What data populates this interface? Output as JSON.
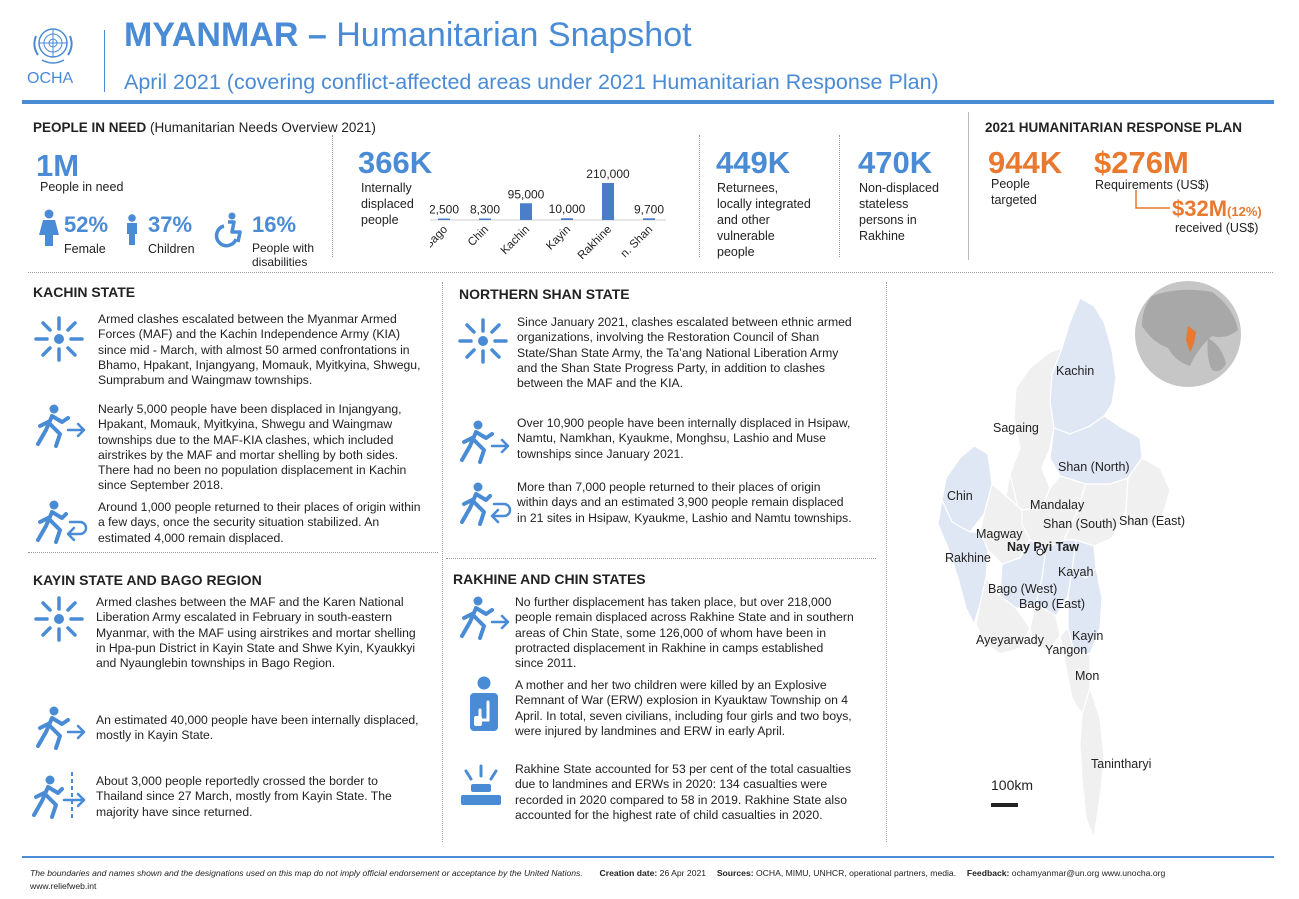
{
  "header": {
    "org": "OCHA",
    "title_country": "MYANMAR",
    "title_dash": " – ",
    "title_rest": "Humanitarian Snapshot",
    "subtitle": "April 2021 (covering conflict-affected areas under 2021 Humanitarian Response Plan)"
  },
  "pin": {
    "heading": "PEOPLE IN NEED",
    "heading_note": " (Humanitarian Needs Overview 2021)",
    "total_value": "1M",
    "total_label": "People in need",
    "female_pct": "52%",
    "female_label": "Female",
    "children_pct": "37%",
    "children_label": "Children",
    "disab_pct": "16%",
    "disab_label_1": "People with",
    "disab_label_2": "disabilities"
  },
  "idp": {
    "value": "366K",
    "label_1": "Internally",
    "label_2": "displaced",
    "label_3": "people"
  },
  "chart_data": {
    "type": "bar",
    "categories": [
      "Bago",
      "Chin",
      "Kachin",
      "Kayin",
      "Rakhine",
      "n. Shan"
    ],
    "values": [
      2500,
      8300,
      95000,
      10000,
      210000,
      9700
    ],
    "value_labels": [
      "2,500",
      "8,300",
      "95,000",
      "10,000",
      "210,000",
      "9,700"
    ],
    "ylim": [
      0,
      210000
    ],
    "color": "#4a7ec8"
  },
  "returnees": {
    "value": "449K",
    "lines": [
      "Returnees,",
      "locally integrated",
      "and other",
      "vulnerable",
      "people"
    ]
  },
  "stateless": {
    "value": "470K",
    "lines": [
      "Non-displaced",
      "stateless",
      "persons in",
      "Rakhine"
    ]
  },
  "hrp": {
    "heading": "2021 HUMANITARIAN RESPONSE PLAN",
    "targeted_value": "944K",
    "targeted_label_1": "People",
    "targeted_label_2": "targeted",
    "req_value": "$276M",
    "req_label": "Requirements (US$)",
    "recv_value": "$32M",
    "recv_pct": "(12%)",
    "recv_label": "received (US$)"
  },
  "kachin": {
    "heading": "KACHIN STATE",
    "p1": "Armed clashes escalated between the Myanmar Armed Forces (MAF) and the Kachin Independence Army (KIA) since mid - March, with almost 50 armed confrontations in Bhamo, Hpakant, Injangyang, Momauk, Myitkyina, Shwegu, Sumprabum and Waingmaw townships.",
    "p2": "Nearly 5,000 people  have been displaced in Injangyang, Hpakant, Momauk, Myitkyina, Shwegu and Waingmaw townships due to the MAF-KIA clashes, which included airstrikes by the MAF and mortar shelling by both sides. There had no been no population displacement in Kachin since September 2018.",
    "p3": "Around 1,000 people returned to their places of origin within a few days, once the security situation stabilized. An estimated 4,000 remain displaced."
  },
  "nshan": {
    "heading": "NORTHERN SHAN STATE",
    "p1": "Since January 2021, clashes escalated between ethnic armed organizations, involving the Restoration Council of Shan State/Shan State Army, the Ta’ang National Liberation Army and the Shan State Progress Party, in addition to clashes between the MAF and the KIA.",
    "p2": "Over 10,900 people have been internally displaced in Hsipaw, Namtu, Namkhan, Kyaukme, Monghsu, Lashio and Muse townships since January 2021.",
    "p3": "More than 7,000 people returned to their places of origin within days and an estimated 3,900 people remain displaced in 21 sites in Hsipaw, Kyaukme, Lashio and Namtu townships."
  },
  "kayin": {
    "heading": "KAYIN STATE AND BAGO REGION",
    "p1": "Armed clashes between the MAF and the Karen National Liberation Army escalated in February in south-eastern Myanmar, with the MAF using airstrikes and mortar shelling in Hpa-pun District in Kayin State and Shwe Kyin, Kyaukkyi and Nyaunglebin townships in Bago Region.",
    "p2": "An estimated 40,000 people have been internally displaced, mostly in Kayin State.",
    "p3": "About 3,000 people reportedly crossed the border to Thailand since 27 March, mostly from Kayin State. The majority have since returned."
  },
  "rakhine": {
    "heading": "RAKHINE AND CHIN STATES",
    "p1": "No further displacement has taken place, but over 218,000 people remain displaced across Rakhine State and in southern areas of Chin State, some 126,000 of whom have been in protracted displacement in Rakhine in camps established since 2011.",
    "p2": "A mother and her two children were killed by an Explosive Remnant of War (ERW) explosion in Kyauktaw Township on 4 April. In total, seven civilians, including four girls and two boys, were injured by landmines and ERW in early April.",
    "p3": "Rakhine State accounted for 53 per cent of the total casualties due to landmines and ERWs in 2020: 134 casualties were recorded in 2020 compared to 58 in 2019. Rakhine State also accounted for the highest rate of child casualties in 2020."
  },
  "map": {
    "labels": [
      "Kachin",
      "Sagaing",
      "Shan (North)",
      "Chin",
      "Mandalay",
      "Shan (South)",
      "Shan (East)",
      "Magway",
      "Nay Pyi Taw",
      "Rakhine",
      "Kayah",
      "Bago (West)",
      "Bago (East)",
      "Ayeyarwady",
      "Kayin",
      "Yangon",
      "Mon",
      "Tanintharyi"
    ],
    "scale": "100km"
  },
  "footer": {
    "disclaimer": "The boundaries and names shown and the designations used on this map do not imply official endorsement or acceptance by the United Nations.",
    "creation_label": "Creation date:",
    "creation_value": " 26 Apr 2021",
    "sources_label": "Sources:",
    "sources_value": " OCHA, MIMU, UNHCR, operational partners, media.",
    "feedback_label": "Feedback:",
    "feedback_value": " ochamyanmar@un.org www.unocha.org",
    "site": "www.reliefweb.int"
  }
}
